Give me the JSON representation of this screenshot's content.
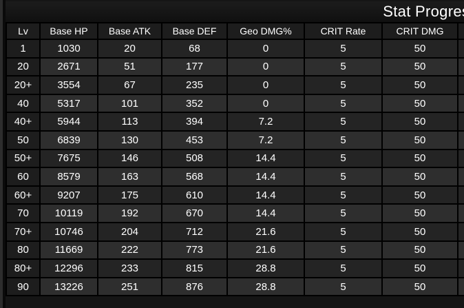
{
  "page": {
    "title": "Stat Progression"
  },
  "table": {
    "columns": [
      "Lv",
      "Base HP",
      "Base ATK",
      "Base DEF",
      "Geo DMG%",
      "CRIT Rate",
      "CRIT DMG",
      ""
    ],
    "rows": [
      [
        "1",
        "1030",
        "20",
        "68",
        "0",
        "5",
        "50",
        ""
      ],
      [
        "20",
        "2671",
        "51",
        "177",
        "0",
        "5",
        "50",
        ""
      ],
      [
        "20+",
        "3554",
        "67",
        "235",
        "0",
        "5",
        "50",
        ""
      ],
      [
        "40",
        "5317",
        "101",
        "352",
        "0",
        "5",
        "50",
        ""
      ],
      [
        "40+",
        "5944",
        "113",
        "394",
        "7.2",
        "5",
        "50",
        ""
      ],
      [
        "50",
        "6839",
        "130",
        "453",
        "7.2",
        "5",
        "50",
        ""
      ],
      [
        "50+",
        "7675",
        "146",
        "508",
        "14.4",
        "5",
        "50",
        ""
      ],
      [
        "60",
        "8579",
        "163",
        "568",
        "14.4",
        "5",
        "50",
        ""
      ],
      [
        "60+",
        "9207",
        "175",
        "610",
        "14.4",
        "5",
        "50",
        ""
      ],
      [
        "70",
        "10119",
        "192",
        "670",
        "14.4",
        "5",
        "50",
        ""
      ],
      [
        "70+",
        "10746",
        "204",
        "712",
        "21.6",
        "5",
        "50",
        ""
      ],
      [
        "80",
        "11669",
        "222",
        "773",
        "21.6",
        "5",
        "50",
        ""
      ],
      [
        "80+",
        "12296",
        "233",
        "815",
        "28.8",
        "5",
        "50",
        ""
      ],
      [
        "90",
        "13226",
        "251",
        "876",
        "28.8",
        "5",
        "50",
        ""
      ]
    ]
  },
  "colors": {
    "border": "#000000",
    "header_bg": "#1d1d1d",
    "level_column_bg": "#1d1d1d",
    "row_dark": "#242424",
    "row_light": "#2e2e2e",
    "text": "#ffffff",
    "title_bar_bg": "#161616",
    "page_strip": "#2d2d2d"
  }
}
